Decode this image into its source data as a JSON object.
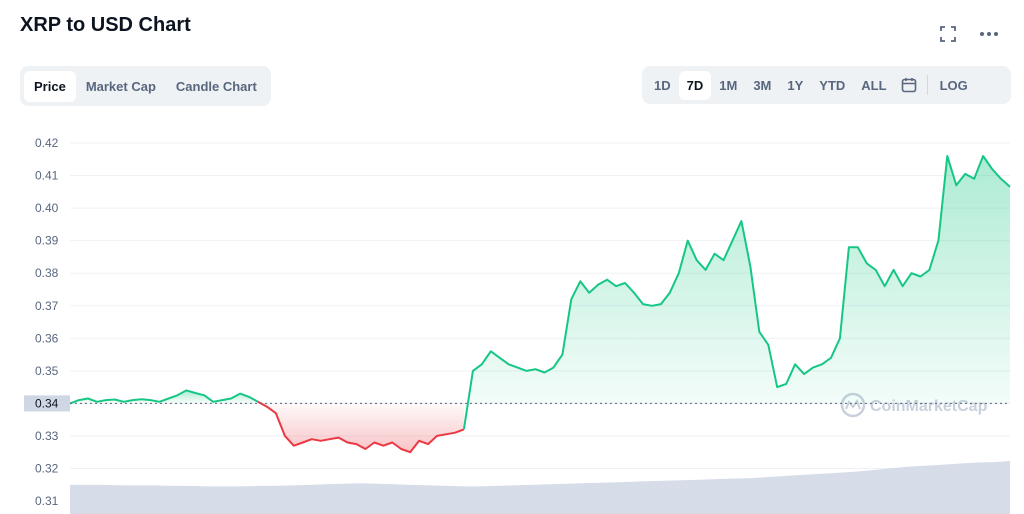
{
  "header": {
    "title": "XRP to USD Chart",
    "icons": [
      "fullscreen-icon",
      "more-icon"
    ]
  },
  "tabs": [
    "Price",
    "Market Cap",
    "Candle Chart"
  ],
  "active_tab": "Price",
  "ranges": [
    "1D",
    "7D",
    "1M",
    "3M",
    "1Y",
    "YTD",
    "ALL"
  ],
  "active_range": "7D",
  "log_label": "LOG",
  "watermark": "CoinMarketCap",
  "colors": {
    "up": "#16c784",
    "down": "#ea3943",
    "volume": "#cfd6e4",
    "accent": "#3861fb"
  },
  "chart_data": {
    "type": "line",
    "ylim": [
      0.307,
      0.428
    ],
    "y_ticks": [
      "0.42",
      "0.41",
      "0.40",
      "0.39",
      "0.38",
      "0.37",
      "0.36",
      "0.35",
      "0.34",
      "0.33",
      "0.32",
      "0.31"
    ],
    "baseline": 0.34,
    "baseline_label": "0.34",
    "grid": true,
    "series": [
      {
        "values": [
          0.34,
          0.341,
          0.3415,
          0.3405,
          0.341,
          0.3412,
          0.3405,
          0.341,
          0.3413,
          0.341,
          0.3405,
          0.3415,
          0.3425,
          0.344,
          0.3432,
          0.3425,
          0.3405,
          0.341,
          0.3415,
          0.343,
          0.342,
          0.3405,
          0.339,
          0.337,
          0.33,
          0.327,
          0.328,
          0.329,
          0.3285,
          0.329,
          0.3295,
          0.328,
          0.3275,
          0.326,
          0.328,
          0.327,
          0.328,
          0.326,
          0.325,
          0.3285,
          0.3275,
          0.33,
          0.3305,
          0.331,
          0.332,
          0.35,
          0.352,
          0.356,
          0.354,
          0.352,
          0.351,
          0.35,
          0.3505,
          0.3495,
          0.351,
          0.355,
          0.372,
          0.3775,
          0.374,
          0.3765,
          0.378,
          0.376,
          0.377,
          0.374,
          0.3705,
          0.37,
          0.3705,
          0.374,
          0.38,
          0.39,
          0.384,
          0.381,
          0.386,
          0.384,
          0.39,
          0.396,
          0.382,
          0.362,
          0.358,
          0.345,
          0.346,
          0.352,
          0.349,
          0.351,
          0.352,
          0.354,
          0.36,
          0.388,
          0.388,
          0.383,
          0.381,
          0.376,
          0.381,
          0.376,
          0.38,
          0.379,
          0.381,
          0.39,
          0.416,
          0.407,
          0.4105,
          0.409,
          0.416,
          0.412,
          0.409,
          0.4065
        ]
      }
    ],
    "volume": [
      0.55,
      0.55,
      0.55,
      0.54,
      0.54,
      0.54,
      0.53,
      0.53,
      0.52,
      0.52,
      0.52,
      0.53,
      0.53,
      0.54,
      0.55,
      0.56,
      0.57,
      0.58,
      0.57,
      0.56,
      0.55,
      0.54,
      0.53,
      0.52,
      0.52,
      0.53,
      0.54,
      0.55,
      0.56,
      0.57,
      0.58,
      0.59,
      0.6,
      0.61,
      0.62,
      0.63,
      0.64,
      0.65,
      0.66,
      0.67,
      0.68,
      0.7,
      0.72,
      0.74,
      0.76,
      0.78,
      0.8,
      0.83,
      0.86,
      0.89,
      0.91,
      0.93,
      0.95,
      0.97,
      0.98,
      1.0
    ]
  }
}
